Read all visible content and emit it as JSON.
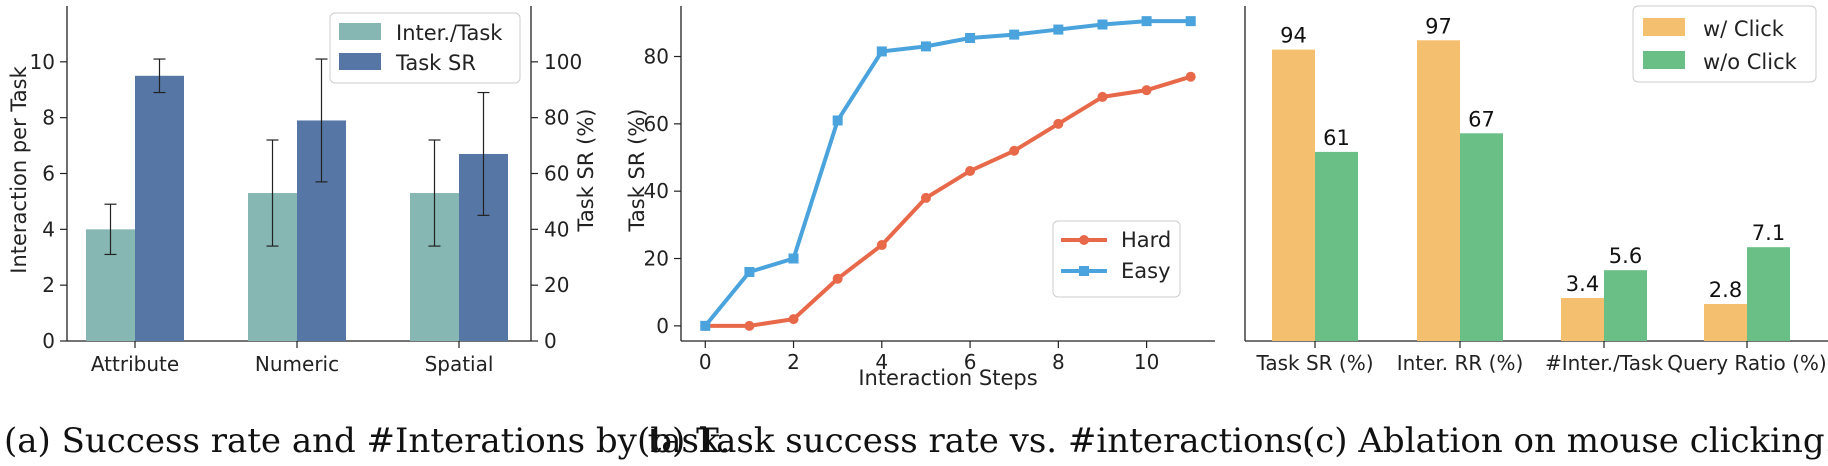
{
  "captions": [
    "(a) Success rate and #Interations by task.",
    "(b) Task success rate vs. #interactions.",
    "(c) Ablation on mouse clicking."
  ],
  "colors": {
    "inter_task": "#86b7b2",
    "task_sr_a": "#5677a6",
    "hard": "#e8694a",
    "easy": "#4aa3dc",
    "with_click": "#f4bf6f",
    "without_click": "#6abf86"
  },
  "chart_data": [
    {
      "type": "bar",
      "categories": [
        "Attribute",
        "Numeric",
        "Spatial"
      ],
      "series": [
        {
          "name": "Inter./Task",
          "axis": "left",
          "values": [
            4.0,
            5.3,
            5.3
          ],
          "err": [
            0.9,
            1.9,
            1.9
          ]
        },
        {
          "name": "Task SR",
          "axis": "right",
          "values": [
            95,
            79,
            67
          ],
          "err": [
            6,
            22,
            22
          ]
        }
      ],
      "ylabel": "Interaction per Task",
      "ylim": [
        0,
        12
      ],
      "yticks": [
        0,
        2,
        4,
        6,
        8,
        10
      ],
      "y2label": "Task SR (%)",
      "y2lim": [
        0,
        120
      ],
      "y2ticks": [
        0,
        20,
        40,
        60,
        80,
        100
      ],
      "legend": "top-right"
    },
    {
      "type": "line",
      "x": [
        0,
        1,
        2,
        3,
        4,
        5,
        6,
        7,
        8,
        9,
        10,
        11
      ],
      "series": [
        {
          "name": "Hard",
          "values": [
            0,
            0,
            2,
            14,
            24,
            38,
            46,
            52,
            60,
            68,
            70,
            74
          ]
        },
        {
          "name": "Easy",
          "values": [
            0,
            16,
            20,
            61,
            81.5,
            83,
            85.5,
            86.5,
            88,
            89.5,
            90.5,
            90.5
          ]
        }
      ],
      "xlabel": "Interaction Steps",
      "ylabel": "Task SR (%)",
      "xlim": [
        -0.55,
        11.55
      ],
      "ylim": [
        -4.5,
        95
      ],
      "xticks": [
        0,
        2,
        4,
        6,
        8,
        10
      ],
      "yticks": [
        0,
        20,
        40,
        60,
        80
      ],
      "legend": "center-right"
    },
    {
      "type": "bar",
      "categories": [
        "Task SR (%)",
        "Inter. RR (%)",
        "#Inter./Task",
        "Query Ratio (%)"
      ],
      "series": [
        {
          "name": "w/ Click",
          "values": [
            94,
            97,
            3.4,
            2.8
          ],
          "labels": [
            "94",
            "97",
            "3.4",
            "2.8"
          ]
        },
        {
          "name": "w/o Click",
          "values": [
            61,
            67,
            5.6,
            7.1
          ],
          "labels": [
            "61",
            "67",
            "5.6",
            "7.1"
          ]
        }
      ],
      "note": "Group heights plotted on independent scales; y-axis has no ticks.",
      "legend": "top-right"
    }
  ]
}
